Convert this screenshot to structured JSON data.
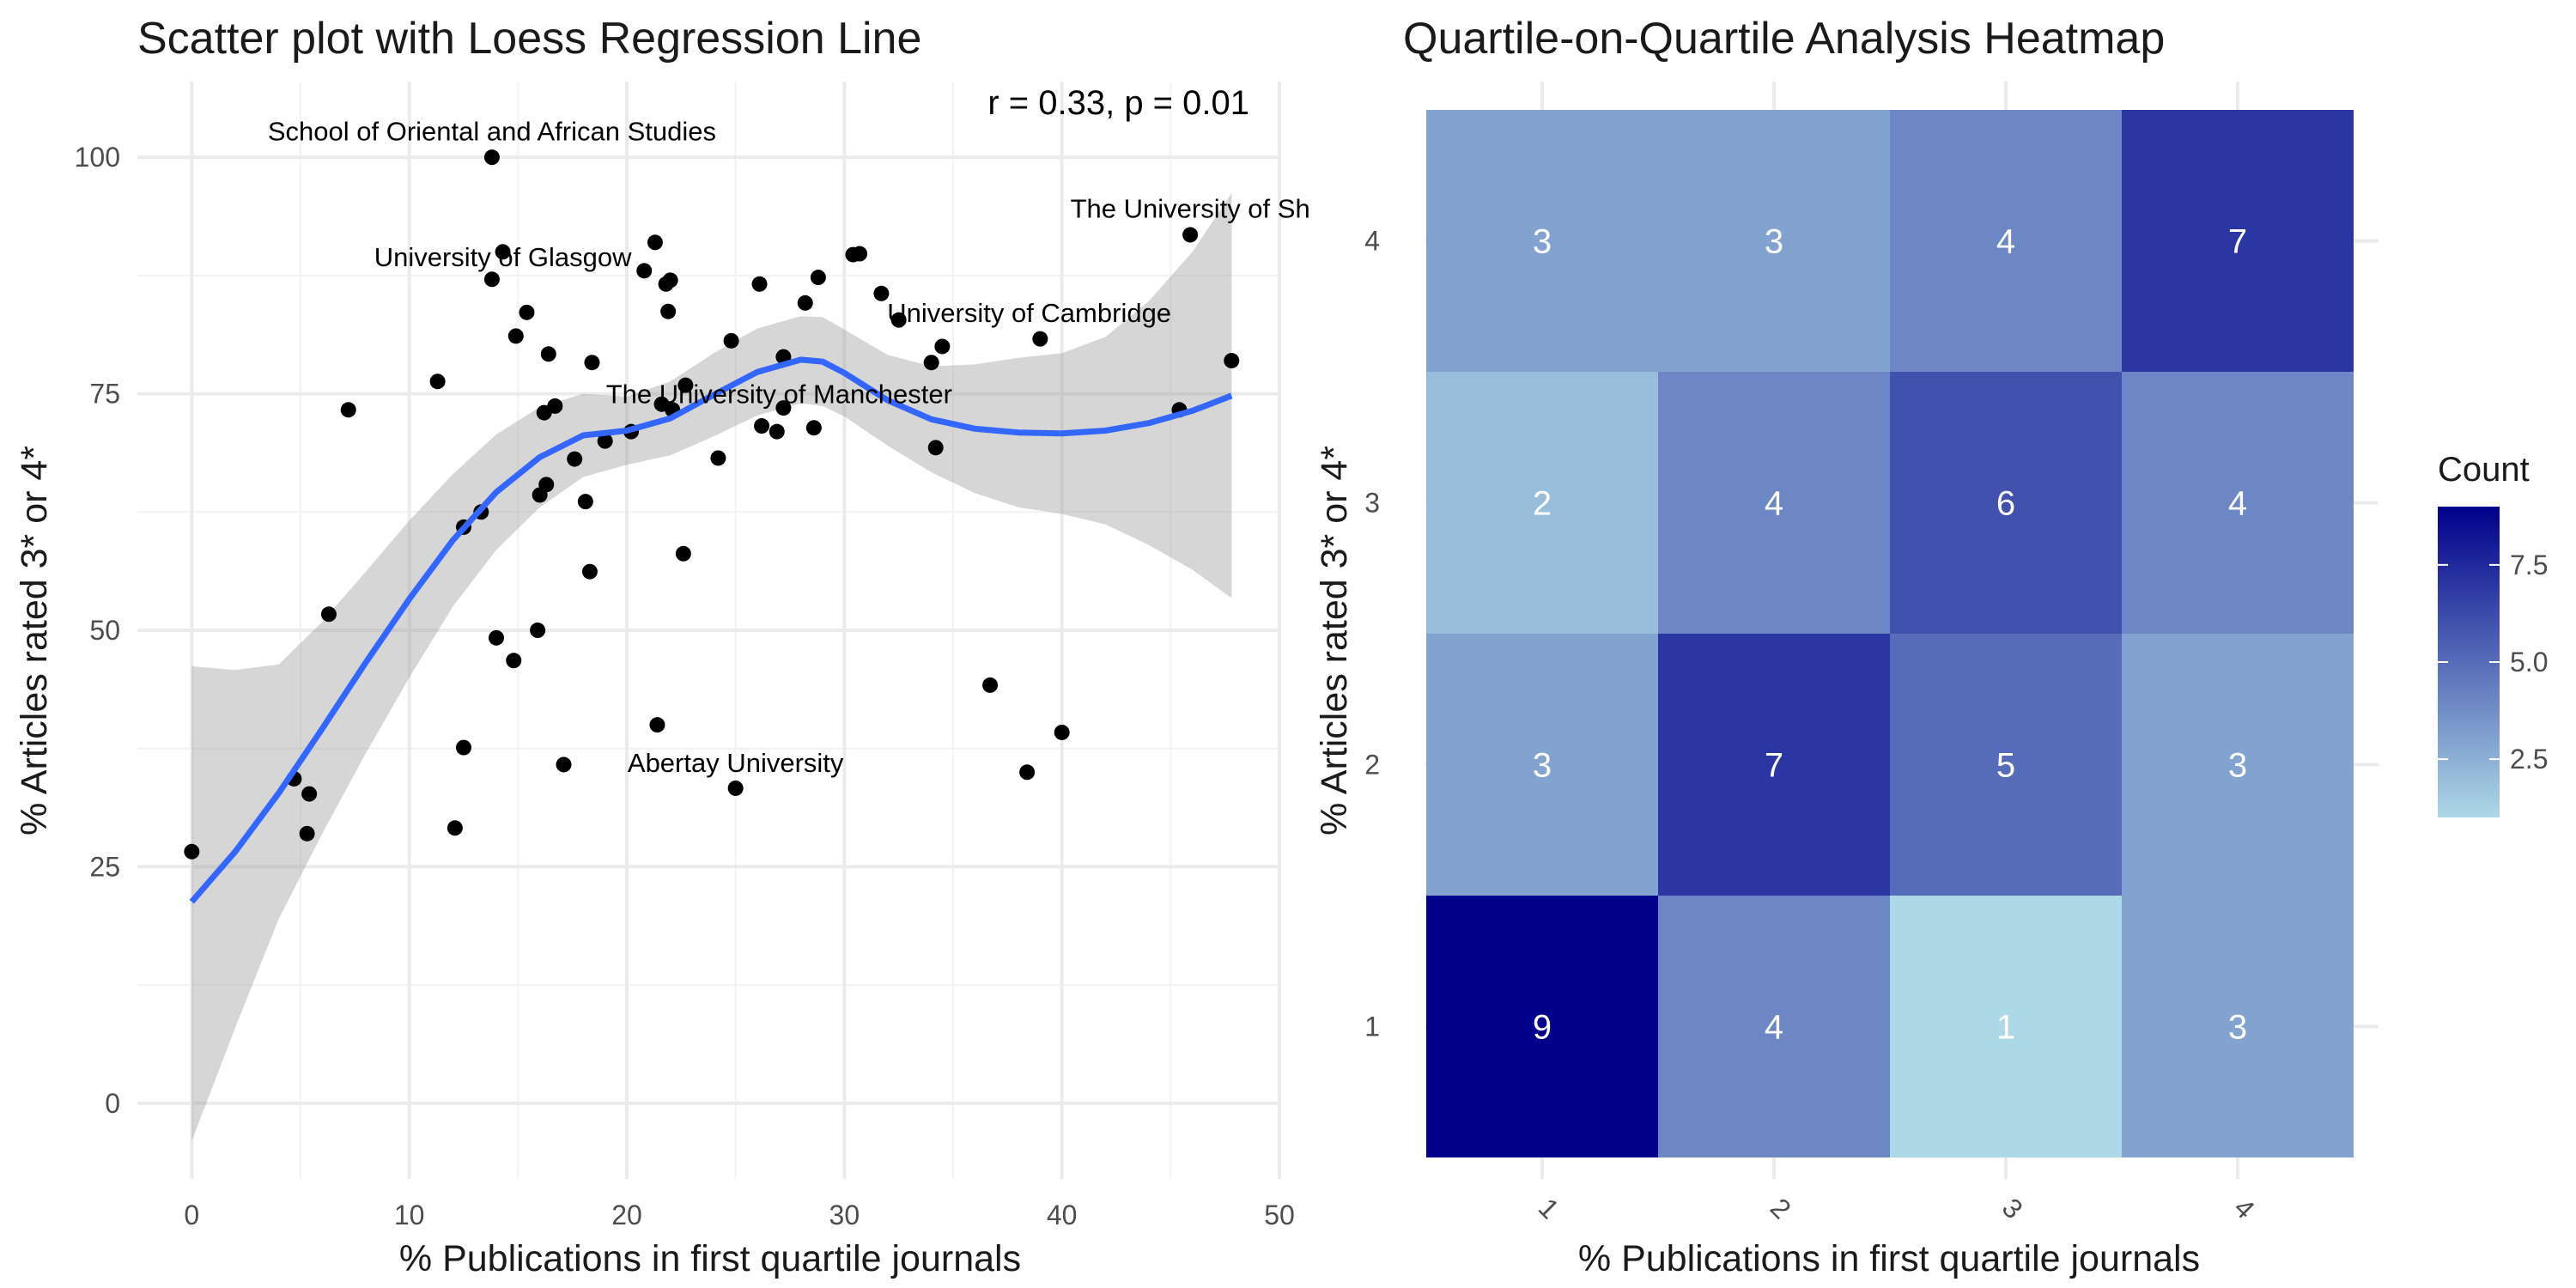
{
  "chart_data": [
    {
      "type": "scatter",
      "title": "Scatter plot with Loess Regression Line",
      "xlabel": "% Publications in first quartile journals",
      "ylabel": "% Articles rated 3* or 4*",
      "xlim": [
        -2.5,
        50
      ],
      "ylim": [
        -8,
        108
      ],
      "x_ticks": [
        0,
        10,
        20,
        30,
        40,
        50
      ],
      "y_ticks": [
        0,
        25,
        50,
        75,
        100
      ],
      "grid": true,
      "stat_label": "r = 0.33, p = 0.01",
      "points": [
        {
          "x": 0,
          "y": 26.6
        },
        {
          "x": 4.7,
          "y": 34.3
        },
        {
          "x": 5.3,
          "y": 28.5
        },
        {
          "x": 5.4,
          "y": 32.7
        },
        {
          "x": 6.3,
          "y": 51.7
        },
        {
          "x": 7.2,
          "y": 73.3
        },
        {
          "x": 11.3,
          "y": 76.3
        },
        {
          "x": 12.1,
          "y": 29.1
        },
        {
          "x": 12.5,
          "y": 37.6
        },
        {
          "x": 12.5,
          "y": 60.9
        },
        {
          "x": 13.3,
          "y": 62.5
        },
        {
          "x": 13.8,
          "y": 100
        },
        {
          "x": 13.8,
          "y": 87.1
        },
        {
          "x": 14.0,
          "y": 49.2
        },
        {
          "x": 14.3,
          "y": 90.0
        },
        {
          "x": 14.8,
          "y": 46.8
        },
        {
          "x": 14.9,
          "y": 81.1
        },
        {
          "x": 15.4,
          "y": 83.6
        },
        {
          "x": 15.9,
          "y": 50.0
        },
        {
          "x": 16.0,
          "y": 64.3
        },
        {
          "x": 16.2,
          "y": 73.0
        },
        {
          "x": 16.3,
          "y": 65.4
        },
        {
          "x": 16.4,
          "y": 79.2
        },
        {
          "x": 16.7,
          "y": 73.7
        },
        {
          "x": 17.1,
          "y": 35.8
        },
        {
          "x": 17.6,
          "y": 68.1
        },
        {
          "x": 18.1,
          "y": 63.6
        },
        {
          "x": 18.3,
          "y": 56.2
        },
        {
          "x": 18.4,
          "y": 78.3
        },
        {
          "x": 19.0,
          "y": 70.0
        },
        {
          "x": 20.2,
          "y": 71.0
        },
        {
          "x": 20.8,
          "y": 88.0
        },
        {
          "x": 21.3,
          "y": 91.0
        },
        {
          "x": 21.4,
          "y": 40.0
        },
        {
          "x": 21.6,
          "y": 73.9
        },
        {
          "x": 21.8,
          "y": 86.6
        },
        {
          "x": 21.9,
          "y": 83.7
        },
        {
          "x": 22.0,
          "y": 87.0
        },
        {
          "x": 22.1,
          "y": 73.3
        },
        {
          "x": 22.6,
          "y": 58.1
        },
        {
          "x": 22.7,
          "y": 75.9
        },
        {
          "x": 24.2,
          "y": 68.2
        },
        {
          "x": 24.8,
          "y": 80.6
        },
        {
          "x": 25.0,
          "y": 33.3
        },
        {
          "x": 26.1,
          "y": 86.6
        },
        {
          "x": 26.2,
          "y": 71.6
        },
        {
          "x": 26.9,
          "y": 71.0
        },
        {
          "x": 27.2,
          "y": 73.5
        },
        {
          "x": 27.2,
          "y": 78.9
        },
        {
          "x": 28.2,
          "y": 84.6
        },
        {
          "x": 28.6,
          "y": 71.4
        },
        {
          "x": 28.8,
          "y": 87.3
        },
        {
          "x": 30.4,
          "y": 89.7
        },
        {
          "x": 30.7,
          "y": 89.8
        },
        {
          "x": 31.7,
          "y": 85.6
        },
        {
          "x": 32.5,
          "y": 82.8
        },
        {
          "x": 34.0,
          "y": 78.3
        },
        {
          "x": 34.2,
          "y": 69.3
        },
        {
          "x": 34.5,
          "y": 80.0
        },
        {
          "x": 36.7,
          "y": 44.2
        },
        {
          "x": 38.4,
          "y": 35.0
        },
        {
          "x": 39.0,
          "y": 80.8
        },
        {
          "x": 40.0,
          "y": 39.2
        },
        {
          "x": 45.4,
          "y": 73.3
        },
        {
          "x": 45.9,
          "y": 91.8
        },
        {
          "x": 47.8,
          "y": 78.5
        }
      ],
      "loess": {
        "x": [
          0,
          2,
          4,
          6,
          8,
          10,
          12,
          14,
          16,
          18,
          20,
          22,
          24,
          26,
          28,
          29,
          30,
          32,
          34,
          36,
          38,
          40,
          42,
          44,
          46,
          47.8
        ],
        "y": [
          21.3,
          26.6,
          32.8,
          39.6,
          46.6,
          53.3,
          59.5,
          64.6,
          68.3,
          70.6,
          71.1,
          72.4,
          74.9,
          77.3,
          78.6,
          78.4,
          77.2,
          74.3,
          72.3,
          71.3,
          70.9,
          70.8,
          71.1,
          71.9,
          73.2,
          74.8
        ],
        "lower": [
          -4.0,
          8.0,
          19.5,
          28.5,
          37.0,
          45.0,
          52.5,
          58.5,
          63.0,
          66.2,
          67.5,
          68.5,
          70.5,
          72.7,
          74.0,
          73.7,
          72.6,
          69.5,
          66.7,
          64.5,
          63.0,
          62.3,
          61.2,
          59.0,
          56.4,
          53.4
        ],
        "upper": [
          46.2,
          45.8,
          46.4,
          50.9,
          56.2,
          61.6,
          66.5,
          70.7,
          73.6,
          75.0,
          74.7,
          76.3,
          79.3,
          81.9,
          83.2,
          83.1,
          81.8,
          79.1,
          77.9,
          78.1,
          78.8,
          79.3,
          81.0,
          84.8,
          90.0,
          96.2
        ]
      },
      "annotations": [
        {
          "text": "School of Oriental and African Studies",
          "x": 13.8,
          "y": 102.8
        },
        {
          "text": "University of Glasgow",
          "x": 14.3,
          "y": 89.5
        },
        {
          "text": "The University of Manchester",
          "x": 27.0,
          "y": 75.0
        },
        {
          "text": "University of Cambridge",
          "x": 38.5,
          "y": 83.6
        },
        {
          "text": "Abertay University",
          "x": 25.0,
          "y": 36.0
        },
        {
          "text": "The University of Sh",
          "x": 45.9,
          "y": 94.6
        }
      ]
    },
    {
      "type": "heatmap",
      "title": "Quartile-on-Quartile Analysis Heatmap",
      "xlabel": "% Publications in first quartile journals",
      "ylabel": "% Articles rated 3* or 4*",
      "x_categories": [
        "1",
        "2",
        "3",
        "4"
      ],
      "y_categories": [
        "1",
        "2",
        "3",
        "4"
      ],
      "values": [
        [
          9,
          4,
          1,
          3
        ],
        [
          3,
          7,
          5,
          3
        ],
        [
          2,
          4,
          6,
          4
        ],
        [
          3,
          3,
          4,
          7
        ]
      ],
      "legend": {
        "title": "Count",
        "ticks": [
          "2.5",
          "5.0",
          "7.5"
        ],
        "tick_values": [
          2.5,
          5.0,
          7.5
        ],
        "range": [
          1,
          9
        ],
        "low_color": "#add8e6",
        "high_color": "#00008b"
      }
    }
  ]
}
